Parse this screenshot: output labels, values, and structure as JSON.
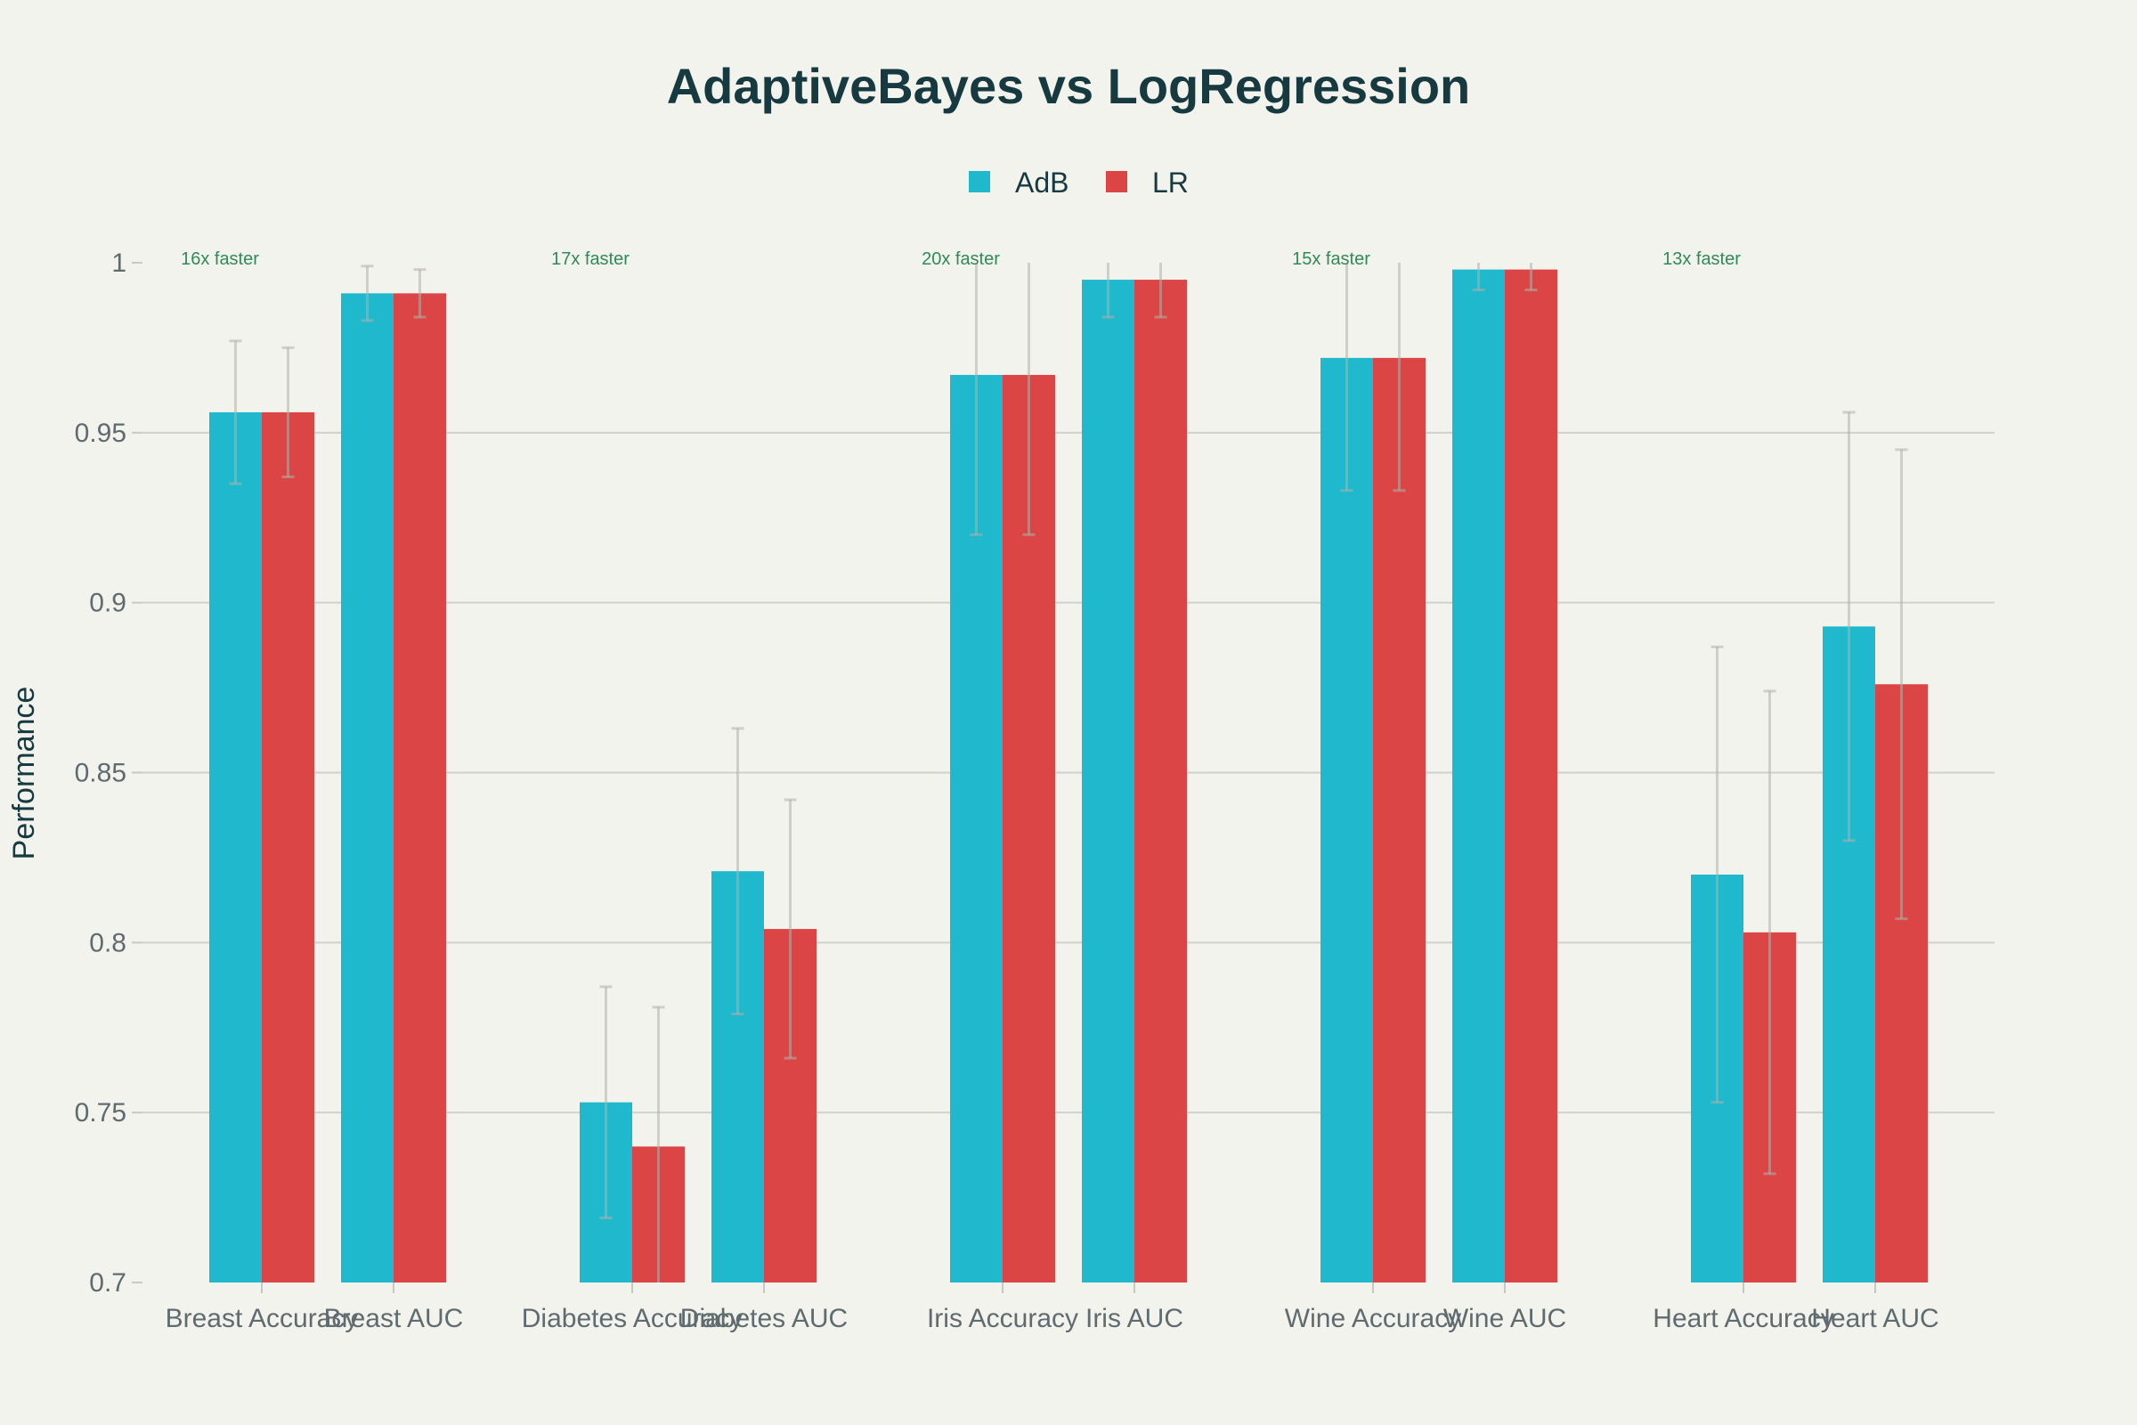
{
  "chart_data": {
    "type": "bar",
    "title": "AdaptiveBayes vs LogRegression",
    "xlabel": "",
    "ylabel": "Performance",
    "ylim": [
      0.7,
      1.0
    ],
    "yticks": [
      0.7,
      0.75,
      0.8,
      0.85,
      0.9,
      0.95,
      1
    ],
    "ytick_labels": [
      "0.7",
      "0.75",
      "0.8",
      "0.85",
      "0.9",
      "0.95",
      "1"
    ],
    "grid": true,
    "legend_position": "top-center",
    "categories": [
      "Breast Accuracy",
      "Breast AUC",
      "Diabetes Accuracy",
      "Diabetes AUC",
      "Iris Accuracy",
      "Iris AUC",
      "Wine Accuracy",
      "Wine AUC",
      "Heart Accuracy",
      "Heart AUC"
    ],
    "series": [
      {
        "name": "AdB",
        "color": "#1fb8cd",
        "values": [
          0.956,
          0.991,
          0.753,
          0.821,
          0.967,
          0.995,
          0.972,
          0.998,
          0.82,
          0.893
        ],
        "error_low": [
          0.935,
          0.983,
          0.719,
          0.779,
          0.92,
          0.984,
          0.933,
          0.992,
          0.753,
          0.83
        ],
        "error_high": [
          0.977,
          0.999,
          0.787,
          0.863,
          1.0,
          1.0,
          1.0,
          1.0,
          0.887,
          0.956
        ]
      },
      {
        "name": "LR",
        "color": "#db4545",
        "values": [
          0.956,
          0.991,
          0.74,
          0.804,
          0.967,
          0.995,
          0.972,
          0.998,
          0.803,
          0.876
        ],
        "error_low": [
          0.937,
          0.984,
          0.699,
          0.766,
          0.92,
          0.984,
          0.933,
          0.992,
          0.732,
          0.807
        ],
        "error_high": [
          0.975,
          0.998,
          0.781,
          0.842,
          1.0,
          1.0,
          1.0,
          1.0,
          0.874,
          0.945
        ]
      }
    ],
    "annotations": [
      {
        "text": "16x faster",
        "group": 0
      },
      {
        "text": "17x faster",
        "group": 1
      },
      {
        "text": "20x faster",
        "group": 2
      },
      {
        "text": "15x faster",
        "group": 3
      },
      {
        "text": "13x faster",
        "group": 4
      }
    ]
  }
}
